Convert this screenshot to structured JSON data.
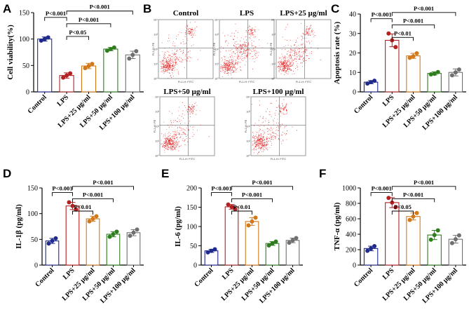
{
  "colors": {
    "Control": "#1f2a8a",
    "LPS": "#b22222",
    "LPS+25 µg/ml": "#d2791c",
    "LPS+50 µg/ml": "#2f7d1f",
    "LPS+100 µg/ml": "#707070",
    "dots": "#e02020"
  },
  "chart_data": [
    {
      "panel": "A",
      "type": "bar",
      "categories": [
        "Control",
        "LPS",
        "LPS+25 µg/ml",
        "LPS+50 µg/ml",
        "LPS+100 µg/ml"
      ],
      "values": [
        100,
        31,
        49,
        81,
        70
      ],
      "errors": [
        4,
        5,
        5,
        3,
        7
      ],
      "points": [
        [
          97,
          103,
          100
        ],
        [
          27,
          35,
          31
        ],
        [
          45,
          53,
          49
        ],
        [
          78,
          84,
          81
        ],
        [
          63,
          77,
          70
        ]
      ],
      "ylabel": "Cell viability(%)",
      "ylim": [
        0,
        150
      ],
      "yticks": [
        0,
        50,
        100,
        150
      ],
      "comparisons": [
        {
          "from": 0,
          "to": 1,
          "label": "P<0.001"
        },
        {
          "from": 1,
          "to": 2,
          "label": "P<0.05"
        },
        {
          "from": 1,
          "to": 3,
          "label": "P<0.001"
        },
        {
          "from": 1,
          "to": 4,
          "label": "P<0.001"
        }
      ]
    },
    {
      "panel": "C",
      "type": "bar",
      "categories": [
        "Control",
        "LPS",
        "LPS+25 µg/ml",
        "LPS+50 µg/ml",
        "LPS+100 µg/ml"
      ],
      "values": [
        5,
        26.5,
        18.5,
        9.5,
        10
      ],
      "errors": [
        0.8,
        3.3,
        1.3,
        0.8,
        1.8
      ],
      "points": [
        [
          4.3,
          5.7,
          5
        ],
        [
          30,
          23,
          26.5
        ],
        [
          17.5,
          19.8,
          18.3
        ],
        [
          9,
          10.2,
          9.3
        ],
        [
          8.5,
          11.5,
          10
        ]
      ],
      "ylabel": "Apoptosis rate (%)",
      "ylim": [
        0,
        40
      ],
      "yticks": [
        0,
        10,
        20,
        30,
        40
      ],
      "comparisons": [
        {
          "from": 0,
          "to": 1,
          "label": "P<0.001"
        },
        {
          "from": 1,
          "to": 2,
          "label": "P<0.01"
        },
        {
          "from": 1,
          "to": 3,
          "label": "P<0.001"
        },
        {
          "from": 1,
          "to": 4,
          "label": "P<0.001"
        }
      ]
    },
    {
      "panel": "D",
      "type": "bar",
      "categories": [
        "Control",
        "LPS",
        "LPS+25 µg/ml",
        "LPS+50 µg/ml",
        "LPS+100 µg/ml"
      ],
      "values": [
        47,
        115,
        90,
        60,
        63
      ],
      "errors": [
        5,
        7,
        5,
        5,
        6
      ],
      "points": [
        [
          42,
          52,
          47
        ],
        [
          122,
          108,
          115
        ],
        [
          85,
          95,
          90
        ],
        [
          55,
          65,
          60
        ],
        [
          57,
          69,
          63
        ]
      ],
      "ylabel": "IL-1β (pg/ml)",
      "ylim": [
        0,
        150
      ],
      "yticks": [
        0,
        50,
        100,
        150
      ],
      "comparisons": [
        {
          "from": 0,
          "to": 1,
          "label": "P<0.001"
        },
        {
          "from": 1,
          "to": 2,
          "label": "P<0.01"
        },
        {
          "from": 1,
          "to": 3,
          "label": "P<0.001"
        },
        {
          "from": 1,
          "to": 4,
          "label": "P<0.001"
        }
      ]
    },
    {
      "panel": "E",
      "type": "bar",
      "categories": [
        "Control",
        "LPS",
        "LPS+25 µg/ml",
        "LPS+50 µg/ml",
        "LPS+100 µg/ml"
      ],
      "values": [
        37,
        151,
        113,
        56,
        64
      ],
      "errors": [
        4,
        6,
        10,
        5,
        6
      ],
      "points": [
        [
          33,
          41,
          37
        ],
        [
          157,
          145,
          151
        ],
        [
          103,
          123,
          113
        ],
        [
          51,
          61,
          56
        ],
        [
          58,
          70,
          64
        ]
      ],
      "ylabel": "IL-6 (pg/ml)",
      "ylim": [
        0,
        200
      ],
      "yticks": [
        0,
        50,
        100,
        150,
        200
      ],
      "comparisons": [
        {
          "from": 0,
          "to": 1,
          "label": "P<0.001"
        },
        {
          "from": 1,
          "to": 2,
          "label": "P<0.01"
        },
        {
          "from": 1,
          "to": 3,
          "label": "P<0.001"
        },
        {
          "from": 1,
          "to": 4,
          "label": "P<0.001"
        }
      ]
    },
    {
      "panel": "F",
      "type": "bar",
      "categories": [
        "Control",
        "LPS",
        "LPS+25 µg/ml",
        "LPS+50 µg/ml",
        "LPS+100 µg/ml"
      ],
      "values": [
        215,
        810,
        630,
        390,
        335
      ],
      "errors": [
        30,
        65,
        45,
        60,
        50
      ],
      "points": [
        [
          185,
          245,
          215
        ],
        [
          870,
          750,
          810
        ],
        [
          585,
          675,
          630
        ],
        [
          330,
          450,
          390
        ],
        [
          285,
          385,
          335
        ]
      ],
      "ylabel": "TNF-α (pg/ml)",
      "ylim": [
        0,
        1000
      ],
      "yticks": [
        0,
        200,
        400,
        600,
        800,
        1000
      ],
      "comparisons": [
        {
          "from": 0,
          "to": 1,
          "label": "P<0.001"
        },
        {
          "from": 1,
          "to": 2,
          "label": "P<0.05"
        },
        {
          "from": 1,
          "to": 3,
          "label": "P<0.001"
        },
        {
          "from": 1,
          "to": 4,
          "label": "P<0.001"
        }
      ]
    }
  ],
  "flow": {
    "panel": "B",
    "plots": [
      "Control",
      "LPS",
      "LPS+25 µg/ml",
      "LPS+50 µg/ml",
      "LPS+100 µg/ml"
    ],
    "xlabel": "FL1-H: FITC",
    "ylabel": "FL2-H: PE",
    "ticks": [
      "10⁰",
      "10¹",
      "10²",
      "10³",
      "10⁴"
    ],
    "intensity": {
      "Control": 0.35,
      "LPS": 1.0,
      "LPS+25 µg/ml": 0.7,
      "LPS+50 µg/ml": 0.4,
      "LPS+100 µg/ml": 0.45
    }
  }
}
